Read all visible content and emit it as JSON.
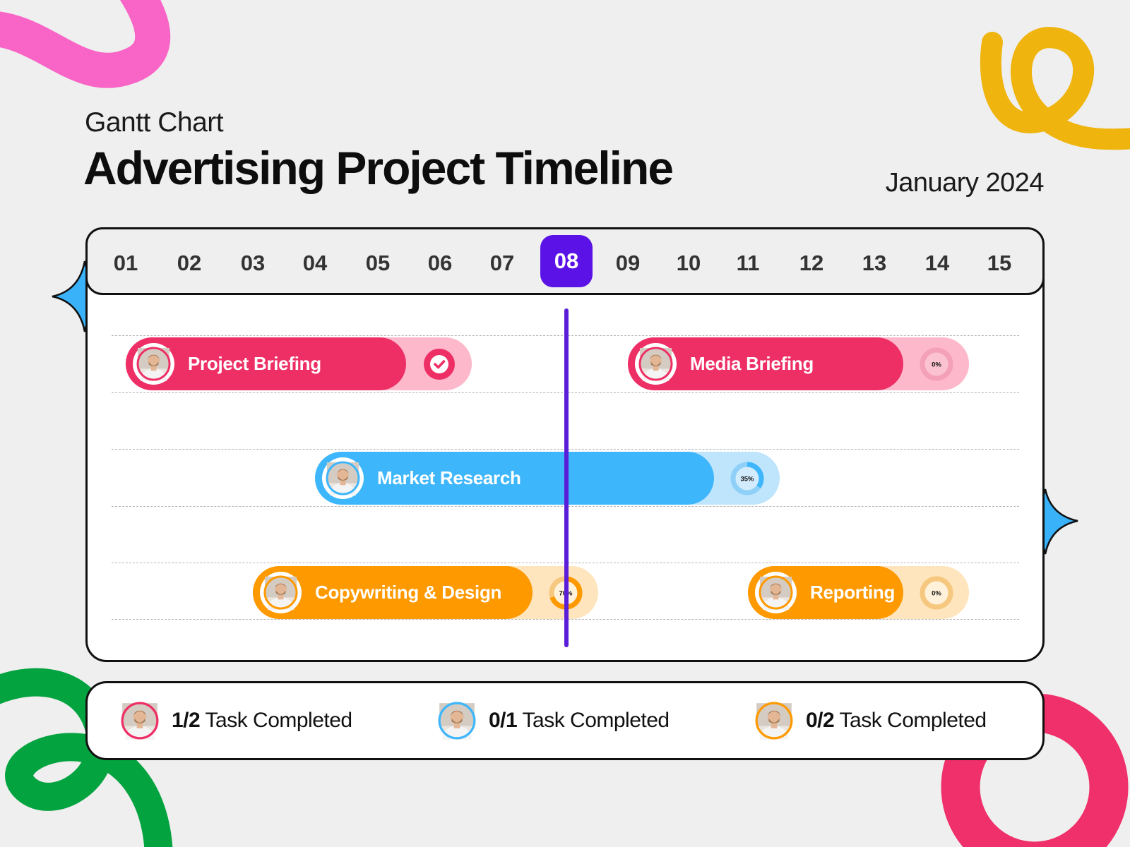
{
  "header": {
    "subtitle": "Gantt Chart",
    "title": "Advertising Project Timeline",
    "month": "January 2024"
  },
  "colors": {
    "pink": "#ee2f66",
    "pink_light": "#fdb8cc",
    "blue": "#3eb6fb",
    "blue_light": "#bfe5fd",
    "orange": "#fe9900",
    "orange_light": "#ffe5bd",
    "purple": "#5b12e6",
    "background": "#efefef"
  },
  "chart_data": {
    "type": "gantt",
    "days": [
      "01",
      "02",
      "03",
      "04",
      "05",
      "06",
      "07",
      "08",
      "09",
      "10",
      "11",
      "12",
      "13",
      "14",
      "15"
    ],
    "current_day": "08",
    "tasks": [
      {
        "name": "Project Briefing",
        "row": 0,
        "start": 1,
        "end": 6,
        "color": "pink",
        "progress_label": "",
        "progress": 100,
        "status_icon": "check-icon"
      },
      {
        "name": "Media Briefing",
        "row": 0,
        "start": 9,
        "end": 14,
        "color": "pink",
        "progress_label": "0%",
        "progress": 0,
        "status_icon": ""
      },
      {
        "name": "Market Research",
        "row": 1,
        "start": 4,
        "end": 11,
        "color": "blue",
        "progress_label": "35%",
        "progress": 35,
        "status_icon": ""
      },
      {
        "name": "Copywriting & Design",
        "row": 2,
        "start": 3,
        "end": 8,
        "color": "orange",
        "progress_label": "70%",
        "progress": 70,
        "status_icon": ""
      },
      {
        "name": "Reporting",
        "row": 2,
        "start": 11,
        "end": 14,
        "color": "orange",
        "progress_label": "0%",
        "progress": 0,
        "status_icon": ""
      }
    ]
  },
  "summary": [
    {
      "count": "1/2",
      "label": "Task Completed",
      "color": "pink"
    },
    {
      "count": "0/1",
      "label": "Task Completed",
      "color": "blue"
    },
    {
      "count": "0/2",
      "label": "Task Completed",
      "color": "orange"
    }
  ]
}
